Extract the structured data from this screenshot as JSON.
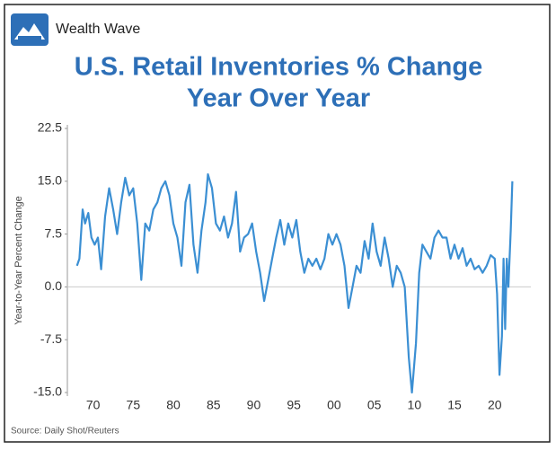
{
  "chart_data": {
    "type": "line",
    "brand": "Wealth Wave",
    "title": [
      "U.S. Retail Inventories % Change",
      "Year Over Year"
    ],
    "ylabel": "Year-to-Year Percent Change",
    "source": "Source: Daily Shot/Reuters",
    "xlim": [
      1966.8,
      2024.5
    ],
    "ylim": [
      -15,
      22.5
    ],
    "yticks": [
      {
        "value": 22.5,
        "label": "22.5"
      },
      {
        "value": 15,
        "label": "15.0"
      },
      {
        "value": 7.5,
        "label": "7.5"
      },
      {
        "value": 0,
        "label": "0.0"
      },
      {
        "value": -7.5,
        "label": "-7.5"
      },
      {
        "value": -15,
        "label": "-15.0"
      }
    ],
    "xticks": [
      {
        "value": 1970,
        "label": "70"
      },
      {
        "value": 1975,
        "label": "75"
      },
      {
        "value": 1980,
        "label": "80"
      },
      {
        "value": 1985,
        "label": "85"
      },
      {
        "value": 1990,
        "label": "90"
      },
      {
        "value": 1995,
        "label": "95"
      },
      {
        "value": 2000,
        "label": "00"
      },
      {
        "value": 2005,
        "label": "05"
      },
      {
        "value": 2010,
        "label": "10"
      },
      {
        "value": 2015,
        "label": "15"
      },
      {
        "value": 2020,
        "label": "20"
      }
    ],
    "zero_line": true,
    "series": [
      {
        "color": "#3b8fd3",
        "x": [
          1968,
          1968.3,
          1968.7,
          1969,
          1969.4,
          1969.8,
          1970.2,
          1970.6,
          1971,
          1971.5,
          1972,
          1972.5,
          1973,
          1973.5,
          1974,
          1974.5,
          1975,
          1975.5,
          1976,
          1976.5,
          1977,
          1977.5,
          1978,
          1978.5,
          1979,
          1979.5,
          1980,
          1980.5,
          1981,
          1981.5,
          1982,
          1982.5,
          1983,
          1983.5,
          1984,
          1984.3,
          1984.8,
          1985.3,
          1985.8,
          1986.3,
          1986.8,
          1987.3,
          1987.8,
          1988.3,
          1988.8,
          1989.3,
          1989.8,
          1990.3,
          1990.8,
          1991.3,
          1991.8,
          1992.3,
          1992.8,
          1993.3,
          1993.8,
          1994.3,
          1994.8,
          1995.3,
          1995.8,
          1996.3,
          1996.8,
          1997.3,
          1997.8,
          1998.3,
          1998.8,
          1999.3,
          1999.8,
          2000.3,
          2000.8,
          2001.3,
          2001.8,
          2002.3,
          2002.8,
          2003.3,
          2003.8,
          2004.3,
          2004.8,
          2005.3,
          2005.8,
          2006.3,
          2006.8,
          2007.3,
          2007.8,
          2008.3,
          2008.8,
          2009.3,
          2009.7,
          2010.2,
          2010.6,
          2011,
          2011.5,
          2012,
          2012.5,
          2013,
          2013.5,
          2014,
          2014.5,
          2015,
          2015.5,
          2016,
          2016.5,
          2017,
          2017.5,
          2018,
          2018.5,
          2019,
          2019.5,
          2020,
          2020.3,
          2020.6,
          2020.9,
          2021.1,
          2021.3,
          2021.5,
          2021.7,
          2022,
          2022.2
        ],
        "values": [
          3,
          4,
          11,
          9,
          10.5,
          7,
          6,
          7,
          2.5,
          10,
          14,
          11,
          7.5,
          12,
          15.5,
          13,
          14,
          9,
          1,
          9,
          8,
          11,
          12,
          14,
          15,
          13,
          9,
          7,
          3,
          12,
          14.5,
          6,
          2,
          8,
          12,
          16,
          14,
          9,
          8,
          10,
          7,
          9,
          13.5,
          5,
          7,
          7.5,
          9,
          5,
          2,
          -2,
          1,
          4,
          7,
          9.5,
          6,
          9,
          7,
          9.5,
          5,
          2,
          4,
          3,
          4,
          2.5,
          4,
          7.5,
          6,
          7.5,
          6,
          3,
          -3,
          0,
          3,
          2,
          6.5,
          4,
          9,
          5,
          3,
          7,
          4,
          0,
          3,
          2,
          0,
          -10,
          -15,
          -8,
          2,
          6,
          5,
          4,
          7,
          8,
          7,
          7,
          4,
          6,
          4,
          5.5,
          3,
          4,
          2.5,
          3,
          2,
          3,
          4.5,
          4,
          -1,
          -12.5,
          -7,
          4,
          -6,
          4,
          0,
          8,
          15
        ]
      }
    ]
  }
}
